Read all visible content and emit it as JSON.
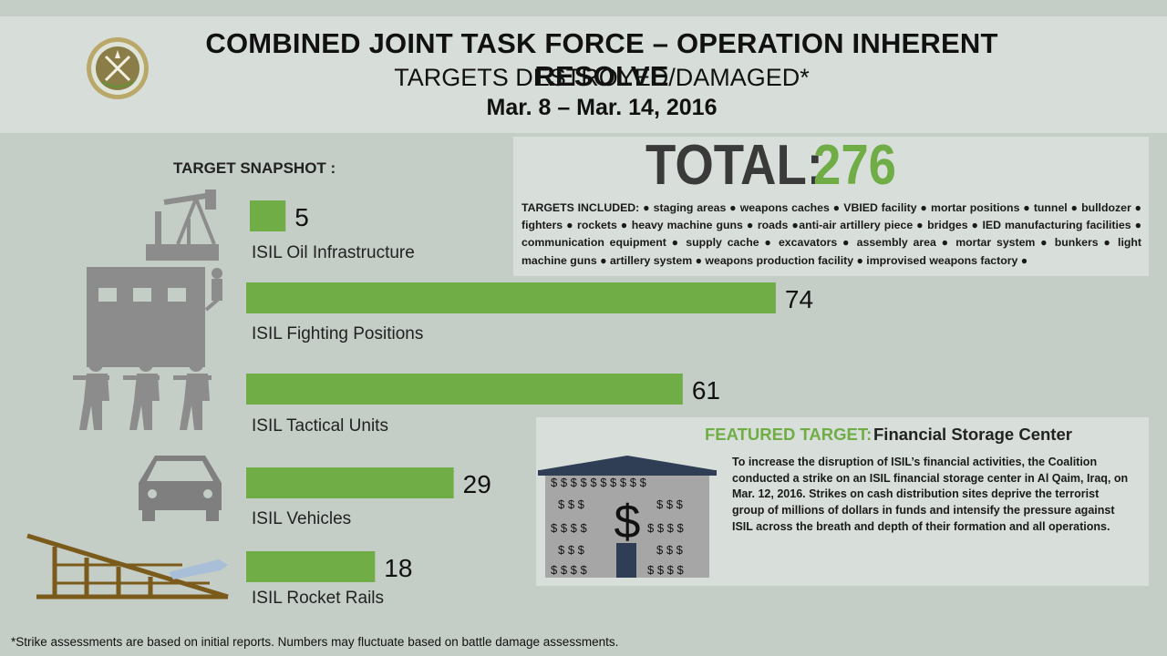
{
  "header": {
    "title": "COMBINED JOINT TASK FORCE – OPERATION INHERENT RESOLVE",
    "subtitle": "TARGETS DESTROYED/DAMAGED*",
    "date_range": "Mar. 8 – Mar. 14,  2016"
  },
  "snapshot_label": "TARGET SNAPSHOT :",
  "total": {
    "label": "TOTAL:",
    "value": "276"
  },
  "targets_included": "TARGETS INCLUDED: ● staging areas ● weapons caches ● VBIED facility ● mortar positions ● tunnel ● bulldozer ● fighters ● rockets ● heavy machine guns ● roads ●anti-air artillery piece ● bridges ● IED manufacturing facilities ● communication equipment ● supply cache ● excavators ● assembly area ● mortar system ● bunkers ● light machine guns ● artillery system ● weapons production facility ● improvised weapons factory ●",
  "chart_data": {
    "type": "bar",
    "orientation": "horizontal",
    "categories": [
      "ISIL Oil Infrastructure",
      "ISIL Fighting Positions",
      "ISIL Tactical Units",
      "ISIL Vehicles",
      "ISIL Rocket Rails"
    ],
    "values": [
      5,
      74,
      61,
      29,
      18
    ],
    "bar_color": "#70ad47",
    "icons": [
      "oil-pump-icon",
      "building-sniper-icon",
      "soldiers-icon",
      "car-icon",
      "rocket-rail-icon"
    ]
  },
  "featured": {
    "heading": "FEATURED TARGET:",
    "name": "Financial Storage Center",
    "icon": "bank-dollar-icon",
    "description": "To increase the disruption of ISIL’s financial activities, the Coalition conducted a strike on an ISIL financial storage center in Al Qaim, Iraq, on Mar. 12, 2016. Strikes on cash distribution sites deprive the terrorist group of millions of dollars in funds and intensify the pressure against ISIL across the breath and depth of their formation and all operations."
  },
  "footnote": "*Strike assessments are based on initial reports. Numbers may fluctuate based on battle damage assessments.",
  "colors": {
    "accent": "#70ad47",
    "icon_gray": "#7f7f7f",
    "panel": "#d8ded9"
  }
}
